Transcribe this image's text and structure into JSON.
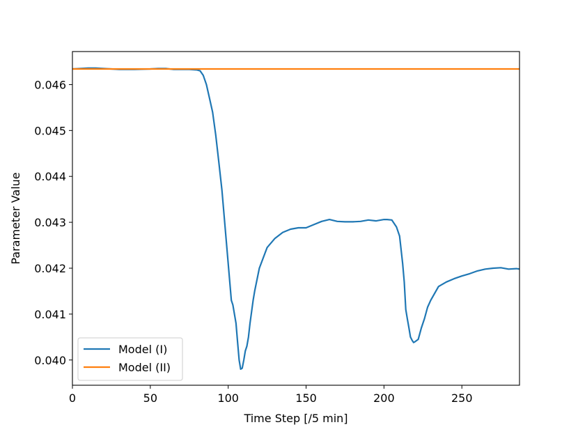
{
  "chart_data": {
    "type": "line",
    "title": "",
    "xlabel": "Time Step [/5 min]",
    "ylabel": "Parameter Value",
    "xlim": [
      0,
      287
    ],
    "ylim": [
      0.03945,
      0.04672
    ],
    "xticks": [
      0,
      50,
      100,
      150,
      200,
      250
    ],
    "xtick_labels": [
      "0",
      "50",
      "100",
      "150",
      "200",
      "250"
    ],
    "yticks": [
      0.04,
      0.041,
      0.042,
      0.043,
      0.044,
      0.045,
      0.046
    ],
    "ytick_labels": [
      "0.040",
      "0.041",
      "0.042",
      "0.043",
      "0.044",
      "0.045",
      "0.046"
    ],
    "grid": false,
    "legend_position": "lower-left",
    "series": [
      {
        "name": "Model (I)",
        "color": "#1f77b4",
        "x": [
          0,
          10,
          15,
          20,
          25,
          30,
          40,
          50,
          55,
          60,
          65,
          70,
          75,
          80,
          82,
          84,
          86,
          88,
          90,
          92,
          94,
          96,
          98,
          100,
          102,
          103,
          105,
          106,
          107,
          108,
          109,
          110,
          111,
          112,
          113,
          114,
          116,
          117,
          120,
          125,
          130,
          135,
          140,
          145,
          150,
          155,
          160,
          165,
          170,
          175,
          180,
          185,
          190,
          195,
          200,
          202,
          205,
          208,
          210,
          212,
          213,
          214,
          215,
          216,
          217,
          218,
          219,
          220,
          222,
          224,
          226,
          228,
          230,
          235,
          240,
          245,
          250,
          255,
          260,
          265,
          270,
          275,
          280,
          285,
          287
        ],
        "y": [
          0.04634,
          0.04636,
          0.04636,
          0.04635,
          0.04634,
          0.04633,
          0.04633,
          0.04634,
          0.04635,
          0.04635,
          0.04633,
          0.04633,
          0.04633,
          0.04632,
          0.0463,
          0.0462,
          0.046,
          0.0457,
          0.0454,
          0.0449,
          0.0443,
          0.0437,
          0.0429,
          0.0421,
          0.0413,
          0.0412,
          0.0408,
          0.0404,
          0.04,
          0.0398,
          0.03982,
          0.04,
          0.0402,
          0.0403,
          0.0405,
          0.0408,
          0.0413,
          0.0415,
          0.042,
          0.04245,
          0.04265,
          0.04278,
          0.04285,
          0.04288,
          0.04288,
          0.04295,
          0.04302,
          0.04306,
          0.04302,
          0.04301,
          0.04301,
          0.04302,
          0.04305,
          0.04303,
          0.04306,
          0.04306,
          0.04305,
          0.0429,
          0.0427,
          0.0421,
          0.0417,
          0.0411,
          0.0409,
          0.0407,
          0.0405,
          0.04043,
          0.04038,
          0.0404,
          0.04045,
          0.0407,
          0.0409,
          0.04115,
          0.0413,
          0.0416,
          0.0417,
          0.04177,
          0.04183,
          0.04188,
          0.04194,
          0.04198,
          0.042,
          0.04201,
          0.04198,
          0.04199,
          0.04198
        ]
      },
      {
        "name": "Model (II)",
        "color": "#ff7f0e",
        "x": [
          0,
          287
        ],
        "y": [
          0.04634,
          0.04634
        ]
      }
    ]
  }
}
